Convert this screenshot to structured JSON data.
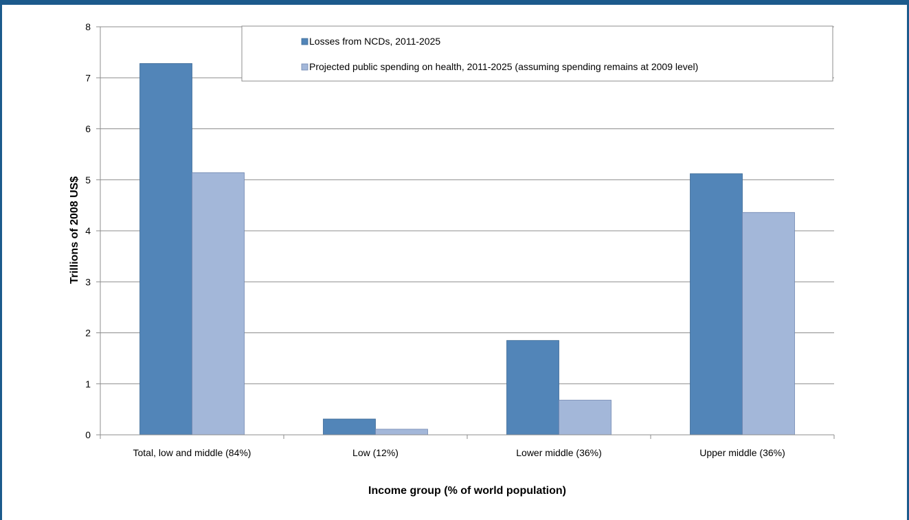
{
  "chart_data": {
    "type": "bar",
    "title": "",
    "xlabel": "Income group (% of world population)",
    "ylabel": "Trillions of 2008 US$",
    "ylim": [
      0,
      8
    ],
    "yticks": [
      0,
      1,
      2,
      3,
      4,
      5,
      6,
      7,
      8
    ],
    "categories": [
      "Total, low and middle (84%)",
      "Low (12%)",
      "Lower middle (36%)",
      "Upper middle (36%)"
    ],
    "series": [
      {
        "name": "Losses from NCDs, 2011-2025",
        "color": "#5285b8",
        "values": [
          7.28,
          0.31,
          1.85,
          5.12
        ]
      },
      {
        "name": "Projected public spending on health, 2011-2025 (assuming spending remains at 2009 level)",
        "color": "#a3b7d9",
        "values": [
          5.14,
          0.11,
          0.68,
          4.36
        ]
      }
    ],
    "grid": true,
    "legend_position": "top-right"
  }
}
